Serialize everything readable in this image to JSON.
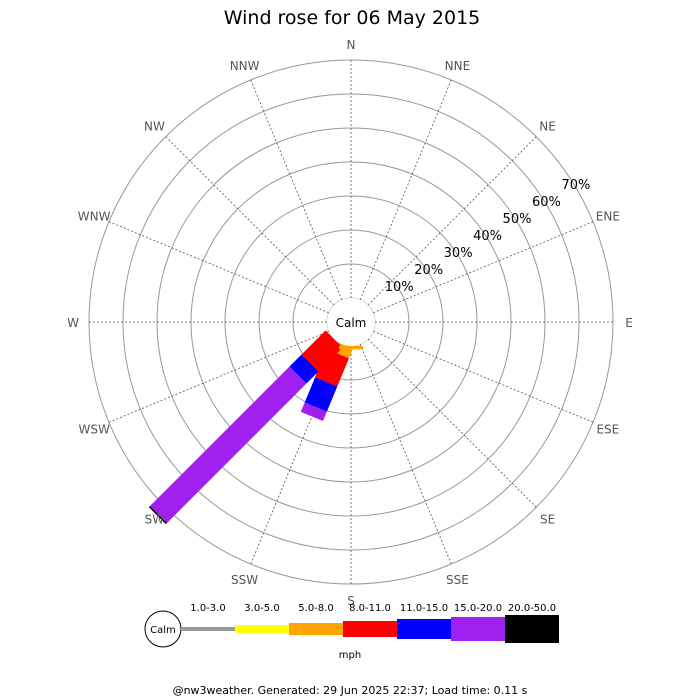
{
  "chart_data": {
    "type": "wind-rose",
    "title": "Wind rose for 06 May 2015",
    "directions": [
      "N",
      "NNE",
      "NE",
      "ENE",
      "E",
      "ESE",
      "SE",
      "SSE",
      "S",
      "SSW",
      "SW",
      "WSW",
      "W",
      "WNW",
      "NW",
      "NNW"
    ],
    "ring_percent": [
      10,
      20,
      30,
      40,
      50,
      60,
      70
    ],
    "ring_labels": [
      "10%",
      "20%",
      "30%",
      "40%",
      "50%",
      "60%",
      "70%"
    ],
    "calm_label": "Calm",
    "units": "mph",
    "speed_bins": [
      {
        "label": "1.0-3.0",
        "color": "#999999"
      },
      {
        "label": "3.0-5.0",
        "color": "#ffff00"
      },
      {
        "label": "5.0-8.0",
        "color": "#ffa500"
      },
      {
        "label": "8.0-11.0",
        "color": "#ff0000"
      },
      {
        "label": "11.0-15.0",
        "color": "#0000ff"
      },
      {
        "label": "15.0-20.0",
        "color": "#a020f0"
      },
      {
        "label": "20.0-50.0",
        "color": "#000000"
      }
    ],
    "series": [
      {
        "direction": "SSW",
        "cumulative_percent": [
          0,
          0,
          3,
          12,
          20,
          23,
          23
        ]
      },
      {
        "direction": "SW",
        "cumulative_percent": [
          0,
          0,
          0,
          10,
          15,
          73,
          73.5
        ]
      },
      {
        "direction": "S",
        "cumulative_percent": [
          0,
          0,
          1,
          1,
          1,
          1,
          1
        ]
      }
    ]
  },
  "footer": "@nw3weather. Generated: 29 Jun 2025 22:37; Load time: 0.11 s"
}
